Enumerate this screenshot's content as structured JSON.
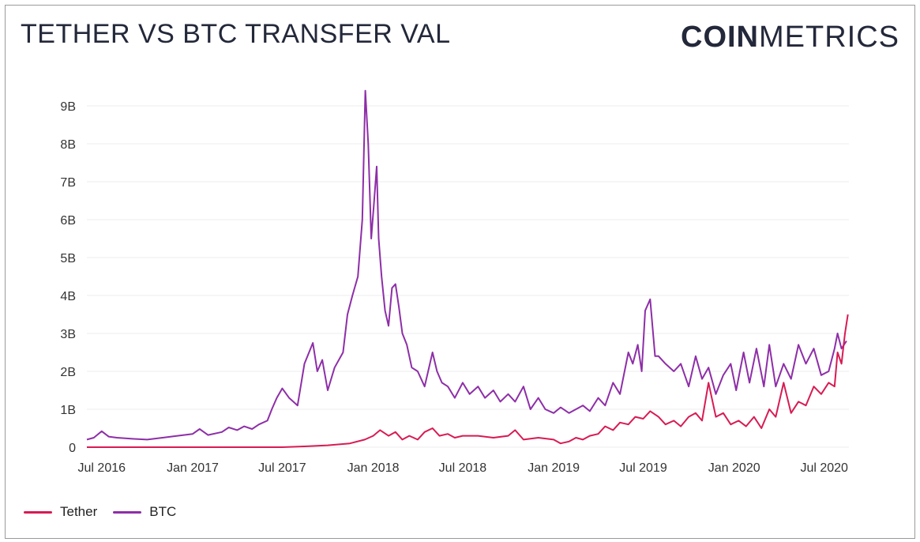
{
  "header": {
    "title": "TETHER VS BTC TRANSFER VAL"
  },
  "brand": {
    "part1": "COIN",
    "part2": "METRICS"
  },
  "chart_data": {
    "type": "line",
    "title": "TETHER VS BTC TRANSFER VAL",
    "xlabel": "",
    "ylabel": "",
    "ylim": [
      0,
      9500000000
    ],
    "xlim": [
      "2016-06-01",
      "2020-08-20"
    ],
    "yticks": [
      {
        "value": 0,
        "label": "0"
      },
      {
        "value": 1000000000,
        "label": "1B"
      },
      {
        "value": 2000000000,
        "label": "2B"
      },
      {
        "value": 3000000000,
        "label": "3B"
      },
      {
        "value": 4000000000,
        "label": "4B"
      },
      {
        "value": 5000000000,
        "label": "5B"
      },
      {
        "value": 6000000000,
        "label": "6B"
      },
      {
        "value": 7000000000,
        "label": "7B"
      },
      {
        "value": 8000000000,
        "label": "8B"
      },
      {
        "value": 9000000000,
        "label": "9B"
      }
    ],
    "xticks": [
      {
        "value": "2016-07-01",
        "label": "Jul 2016"
      },
      {
        "value": "2017-01-01",
        "label": "Jan 2017"
      },
      {
        "value": "2017-07-01",
        "label": "Jul 2017"
      },
      {
        "value": "2018-01-01",
        "label": "Jan 2018"
      },
      {
        "value": "2018-07-01",
        "label": "Jul 2018"
      },
      {
        "value": "2019-01-01",
        "label": "Jan 2019"
      },
      {
        "value": "2019-07-01",
        "label": "Jul 2019"
      },
      {
        "value": "2020-01-01",
        "label": "Jan 2020"
      },
      {
        "value": "2020-07-01",
        "label": "Jul 2020"
      }
    ],
    "grid": true,
    "legend_position": "bottom-left",
    "series": [
      {
        "name": "BTC",
        "color": "#8e2ea8",
        "x": [
          "2016-06-01",
          "2016-06-15",
          "2016-07-01",
          "2016-07-15",
          "2016-08-01",
          "2016-09-01",
          "2016-10-01",
          "2016-11-01",
          "2016-12-01",
          "2017-01-01",
          "2017-01-15",
          "2017-02-01",
          "2017-03-01",
          "2017-03-15",
          "2017-04-01",
          "2017-04-15",
          "2017-05-01",
          "2017-05-15",
          "2017-06-01",
          "2017-06-10",
          "2017-06-20",
          "2017-07-01",
          "2017-07-15",
          "2017-08-01",
          "2017-08-15",
          "2017-09-01",
          "2017-09-10",
          "2017-09-20",
          "2017-10-01",
          "2017-10-15",
          "2017-11-01",
          "2017-11-10",
          "2017-11-20",
          "2017-12-01",
          "2017-12-10",
          "2017-12-16",
          "2017-12-22",
          "2017-12-28",
          "2018-01-03",
          "2018-01-08",
          "2018-01-12",
          "2018-01-18",
          "2018-01-25",
          "2018-02-01",
          "2018-02-08",
          "2018-02-15",
          "2018-02-22",
          "2018-03-01",
          "2018-03-10",
          "2018-03-20",
          "2018-04-01",
          "2018-04-15",
          "2018-05-01",
          "2018-05-10",
          "2018-05-20",
          "2018-06-01",
          "2018-06-15",
          "2018-07-01",
          "2018-07-15",
          "2018-08-01",
          "2018-08-15",
          "2018-09-01",
          "2018-09-15",
          "2018-10-01",
          "2018-10-15",
          "2018-11-01",
          "2018-11-15",
          "2018-12-01",
          "2018-12-15",
          "2019-01-01",
          "2019-01-15",
          "2019-02-01",
          "2019-02-15",
          "2019-03-01",
          "2019-03-15",
          "2019-04-01",
          "2019-04-15",
          "2019-05-01",
          "2019-05-15",
          "2019-06-01",
          "2019-06-10",
          "2019-06-20",
          "2019-06-28",
          "2019-07-05",
          "2019-07-15",
          "2019-07-25",
          "2019-08-01",
          "2019-08-15",
          "2019-09-01",
          "2019-09-15",
          "2019-10-01",
          "2019-10-15",
          "2019-10-28",
          "2019-11-10",
          "2019-11-25",
          "2019-12-10",
          "2019-12-25",
          "2020-01-05",
          "2020-01-20",
          "2020-02-01",
          "2020-02-15",
          "2020-03-01",
          "2020-03-12",
          "2020-03-25",
          "2020-04-10",
          "2020-04-25",
          "2020-05-10",
          "2020-05-25",
          "2020-06-10",
          "2020-06-25",
          "2020-07-10",
          "2020-07-22",
          "2020-07-28",
          "2020-08-05",
          "2020-08-15"
        ],
        "y": [
          200000000,
          250000000,
          420000000,
          280000000,
          250000000,
          220000000,
          200000000,
          250000000,
          300000000,
          350000000,
          480000000,
          320000000,
          400000000,
          520000000,
          450000000,
          550000000,
          480000000,
          600000000,
          700000000,
          1000000000,
          1300000000,
          1550000000,
          1300000000,
          1100000000,
          2200000000,
          2750000000,
          2000000000,
          2300000000,
          1500000000,
          2100000000,
          2500000000,
          3500000000,
          4000000000,
          4500000000,
          6000000000,
          9400000000,
          8000000000,
          5500000000,
          6500000000,
          7400000000,
          5500000000,
          4500000000,
          3600000000,
          3200000000,
          4200000000,
          4300000000,
          3700000000,
          3000000000,
          2700000000,
          2100000000,
          2000000000,
          1600000000,
          2500000000,
          2000000000,
          1700000000,
          1600000000,
          1300000000,
          1700000000,
          1400000000,
          1600000000,
          1300000000,
          1500000000,
          1200000000,
          1400000000,
          1200000000,
          1600000000,
          1000000000,
          1300000000,
          1000000000,
          900000000,
          1050000000,
          900000000,
          1000000000,
          1100000000,
          950000000,
          1300000000,
          1100000000,
          1700000000,
          1400000000,
          2500000000,
          2200000000,
          2700000000,
          2000000000,
          3600000000,
          3900000000,
          2400000000,
          2400000000,
          2200000000,
          2000000000,
          2200000000,
          1600000000,
          2400000000,
          1800000000,
          2100000000,
          1400000000,
          1900000000,
          2200000000,
          1500000000,
          2500000000,
          1700000000,
          2600000000,
          1600000000,
          2700000000,
          1600000000,
          2200000000,
          1800000000,
          2700000000,
          2200000000,
          2600000000,
          1900000000,
          2000000000,
          2600000000,
          3000000000,
          2600000000,
          2800000000
        ]
      },
      {
        "name": "Tether",
        "color": "#d81b53",
        "x": [
          "2016-06-01",
          "2016-10-01",
          "2017-01-01",
          "2017-05-01",
          "2017-07-01",
          "2017-08-15",
          "2017-10-01",
          "2017-11-15",
          "2017-12-15",
          "2018-01-01",
          "2018-01-15",
          "2018-02-01",
          "2018-02-15",
          "2018-03-01",
          "2018-03-15",
          "2018-04-01",
          "2018-04-15",
          "2018-05-01",
          "2018-05-15",
          "2018-06-01",
          "2018-06-15",
          "2018-07-01",
          "2018-08-01",
          "2018-09-01",
          "2018-10-01",
          "2018-10-15",
          "2018-11-01",
          "2018-12-01",
          "2019-01-01",
          "2019-01-15",
          "2019-02-01",
          "2019-02-15",
          "2019-03-01",
          "2019-03-15",
          "2019-04-01",
          "2019-04-15",
          "2019-05-01",
          "2019-05-15",
          "2019-06-01",
          "2019-06-15",
          "2019-07-01",
          "2019-07-15",
          "2019-08-01",
          "2019-08-15",
          "2019-09-01",
          "2019-09-15",
          "2019-10-01",
          "2019-10-15",
          "2019-10-28",
          "2019-11-10",
          "2019-11-25",
          "2019-12-10",
          "2019-12-25",
          "2020-01-10",
          "2020-01-25",
          "2020-02-10",
          "2020-02-25",
          "2020-03-12",
          "2020-03-25",
          "2020-04-10",
          "2020-04-25",
          "2020-05-10",
          "2020-05-25",
          "2020-06-10",
          "2020-06-25",
          "2020-07-10",
          "2020-07-22",
          "2020-07-28",
          "2020-08-05",
          "2020-08-12",
          "2020-08-18"
        ],
        "y": [
          0,
          0,
          0,
          0,
          0,
          20000000,
          50000000,
          100000000,
          200000000,
          300000000,
          450000000,
          300000000,
          400000000,
          200000000,
          300000000,
          200000000,
          400000000,
          500000000,
          300000000,
          350000000,
          250000000,
          300000000,
          300000000,
          250000000,
          300000000,
          450000000,
          200000000,
          250000000,
          200000000,
          100000000,
          150000000,
          250000000,
          200000000,
          300000000,
          350000000,
          550000000,
          450000000,
          650000000,
          600000000,
          800000000,
          750000000,
          950000000,
          800000000,
          600000000,
          700000000,
          550000000,
          800000000,
          900000000,
          700000000,
          1700000000,
          800000000,
          900000000,
          600000000,
          700000000,
          550000000,
          800000000,
          500000000,
          1000000000,
          800000000,
          1700000000,
          900000000,
          1200000000,
          1100000000,
          1600000000,
          1400000000,
          1700000000,
          1600000000,
          2500000000,
          2200000000,
          3000000000,
          3500000000
        ]
      }
    ]
  }
}
